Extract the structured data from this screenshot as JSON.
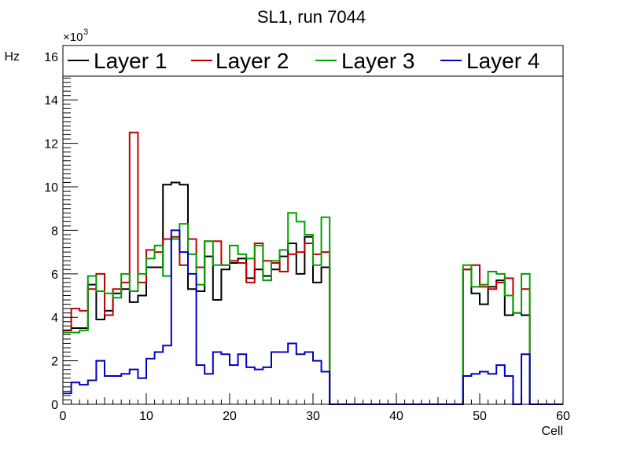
{
  "chart_data": {
    "type": "line",
    "title": "SL1, run 7044",
    "xlabel": "Cell",
    "ylabel": "Hz",
    "exponent_label": "×10",
    "exponent_power": "3",
    "xlim": [
      0,
      60
    ],
    "ylim": [
      0,
      16.5
    ],
    "x_ticks": [
      0,
      10,
      20,
      30,
      40,
      50,
      60
    ],
    "y_ticks": [
      0,
      2,
      4,
      6,
      8,
      10,
      12,
      14,
      16
    ],
    "legend_placement": "top",
    "series": [
      {
        "name": "Layer 1",
        "color": "#000000",
        "x_start": 0,
        "values": [
          3.4,
          3.5,
          3.5,
          5.5,
          3.9,
          4.3,
          5.1,
          5.3,
          4.7,
          5.0,
          6.3,
          6.3,
          10.1,
          10.2,
          10.1,
          5.3,
          5.2,
          6.8,
          4.8,
          6.2,
          6.5,
          6.7,
          5.8,
          6.2,
          5.9,
          6.2,
          6.8,
          7.4,
          6.0,
          7.7,
          5.6,
          6.3,
          0,
          0,
          0,
          0,
          0,
          0,
          0,
          0,
          0,
          0,
          0,
          0,
          0,
          0,
          0,
          0,
          6.2,
          5.1,
          4.6,
          5.4,
          5.7,
          4.1,
          4.2,
          4.1,
          0,
          0,
          0,
          0
        ]
      },
      {
        "name": "Layer 2",
        "color": "#c00000",
        "x_start": 0,
        "values": [
          3.4,
          4.4,
          4.3,
          5.3,
          6.0,
          4.1,
          5.3,
          5.6,
          12.5,
          5.6,
          7.1,
          7.0,
          7.6,
          7.7,
          6.4,
          7.6,
          6.3,
          7.5,
          7.5,
          6.4,
          6.6,
          6.5,
          5.6,
          7.4,
          6.6,
          6.5,
          6.1,
          6.9,
          7.0,
          7.4,
          6.9,
          7.0,
          0,
          0,
          0,
          0,
          0,
          0,
          0,
          0,
          0,
          0,
          0,
          0,
          0,
          0,
          0,
          0,
          6.2,
          6.4,
          5.4,
          5.3,
          5.6,
          5.8,
          4.2,
          5.3,
          0,
          0,
          0,
          0
        ]
      },
      {
        "name": "Layer 3",
        "color": "#00a000",
        "x_start": 0,
        "values": [
          3.3,
          3.3,
          3.4,
          5.9,
          5.2,
          5.1,
          4.9,
          6.0,
          5.2,
          6.0,
          6.7,
          7.3,
          5.9,
          7.6,
          8.3,
          6.9,
          5.5,
          7.5,
          6.4,
          6.4,
          7.3,
          6.9,
          6.7,
          7.3,
          5.7,
          6.6,
          7.1,
          8.8,
          8.4,
          7.8,
          6.4,
          8.6,
          0,
          0,
          0,
          0,
          0,
          0,
          0,
          0,
          0,
          0,
          0,
          0,
          0,
          0,
          0,
          0,
          6.4,
          5.4,
          5.5,
          6.1,
          6.0,
          5.0,
          4.2,
          6.0,
          0,
          0,
          0,
          0
        ]
      },
      {
        "name": "Layer 4",
        "color": "#0000c0",
        "x_start": 0,
        "values": [
          0.5,
          1.0,
          0.9,
          1.1,
          2.0,
          1.3,
          1.3,
          1.4,
          1.6,
          1.2,
          2.1,
          2.4,
          2.7,
          8.0,
          7.0,
          6.0,
          1.8,
          1.4,
          2.4,
          2.3,
          1.8,
          2.3,
          1.7,
          1.6,
          1.7,
          2.4,
          2.4,
          2.8,
          2.3,
          2.4,
          2.0,
          1.5,
          0,
          0,
          0,
          0,
          0,
          0,
          0,
          0,
          0,
          0,
          0,
          0,
          0,
          0,
          0,
          0,
          1.3,
          1.4,
          1.5,
          1.4,
          1.8,
          1.3,
          0,
          2.3,
          0,
          0,
          0,
          0
        ]
      }
    ]
  }
}
